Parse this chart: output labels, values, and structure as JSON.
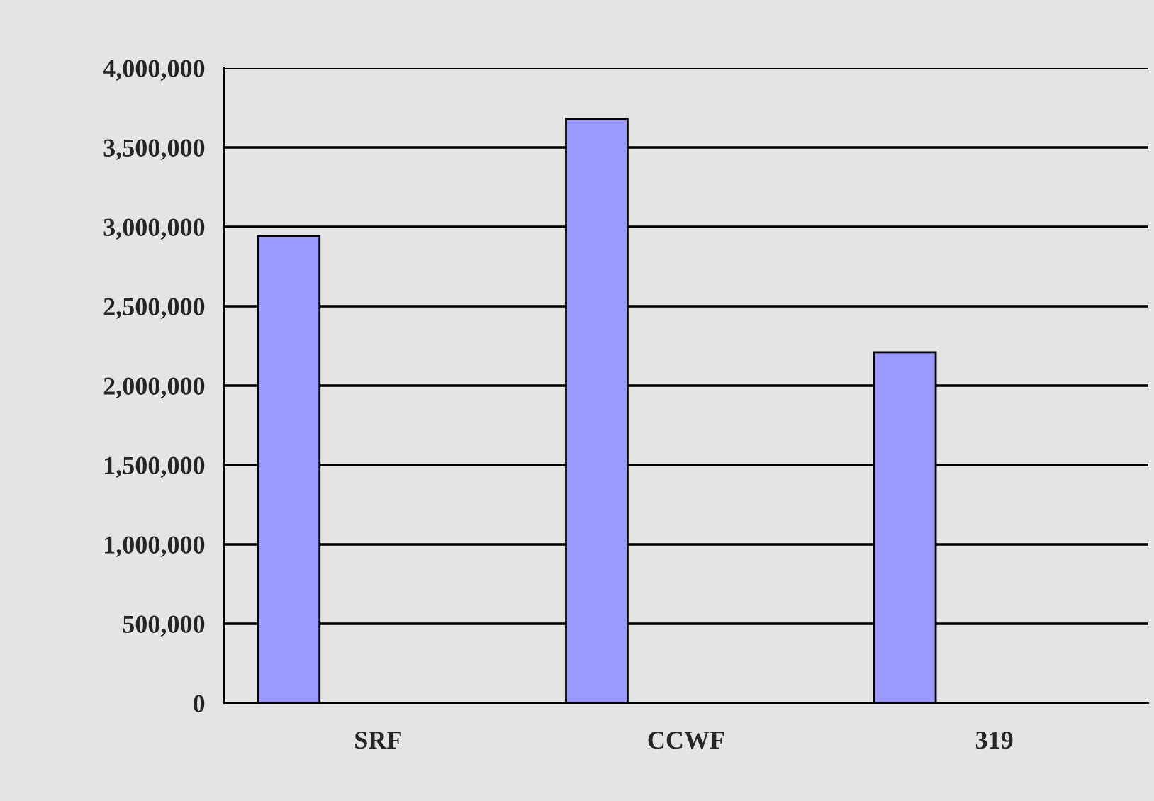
{
  "chart_data": {
    "type": "bar",
    "categories": [
      "SRF",
      "CCWF",
      "319"
    ],
    "values": [
      2940000,
      3680000,
      2210000
    ],
    "color": "#9999ff",
    "ylim": [
      0,
      4000000
    ],
    "yticks": [
      {
        "value": 0,
        "label": "0"
      },
      {
        "value": 500000,
        "label": "500,000"
      },
      {
        "value": 1000000,
        "label": "1,000,000"
      },
      {
        "value": 1500000,
        "label": "1,500,000"
      },
      {
        "value": 2000000,
        "label": "2,000,000"
      },
      {
        "value": 2500000,
        "label": "2,500,000"
      },
      {
        "value": 3000000,
        "label": "3,000,000"
      },
      {
        "value": 3500000,
        "label": "3,500,000"
      },
      {
        "value": 4000000,
        "label": "4,000,000"
      }
    ],
    "grid": "y"
  }
}
